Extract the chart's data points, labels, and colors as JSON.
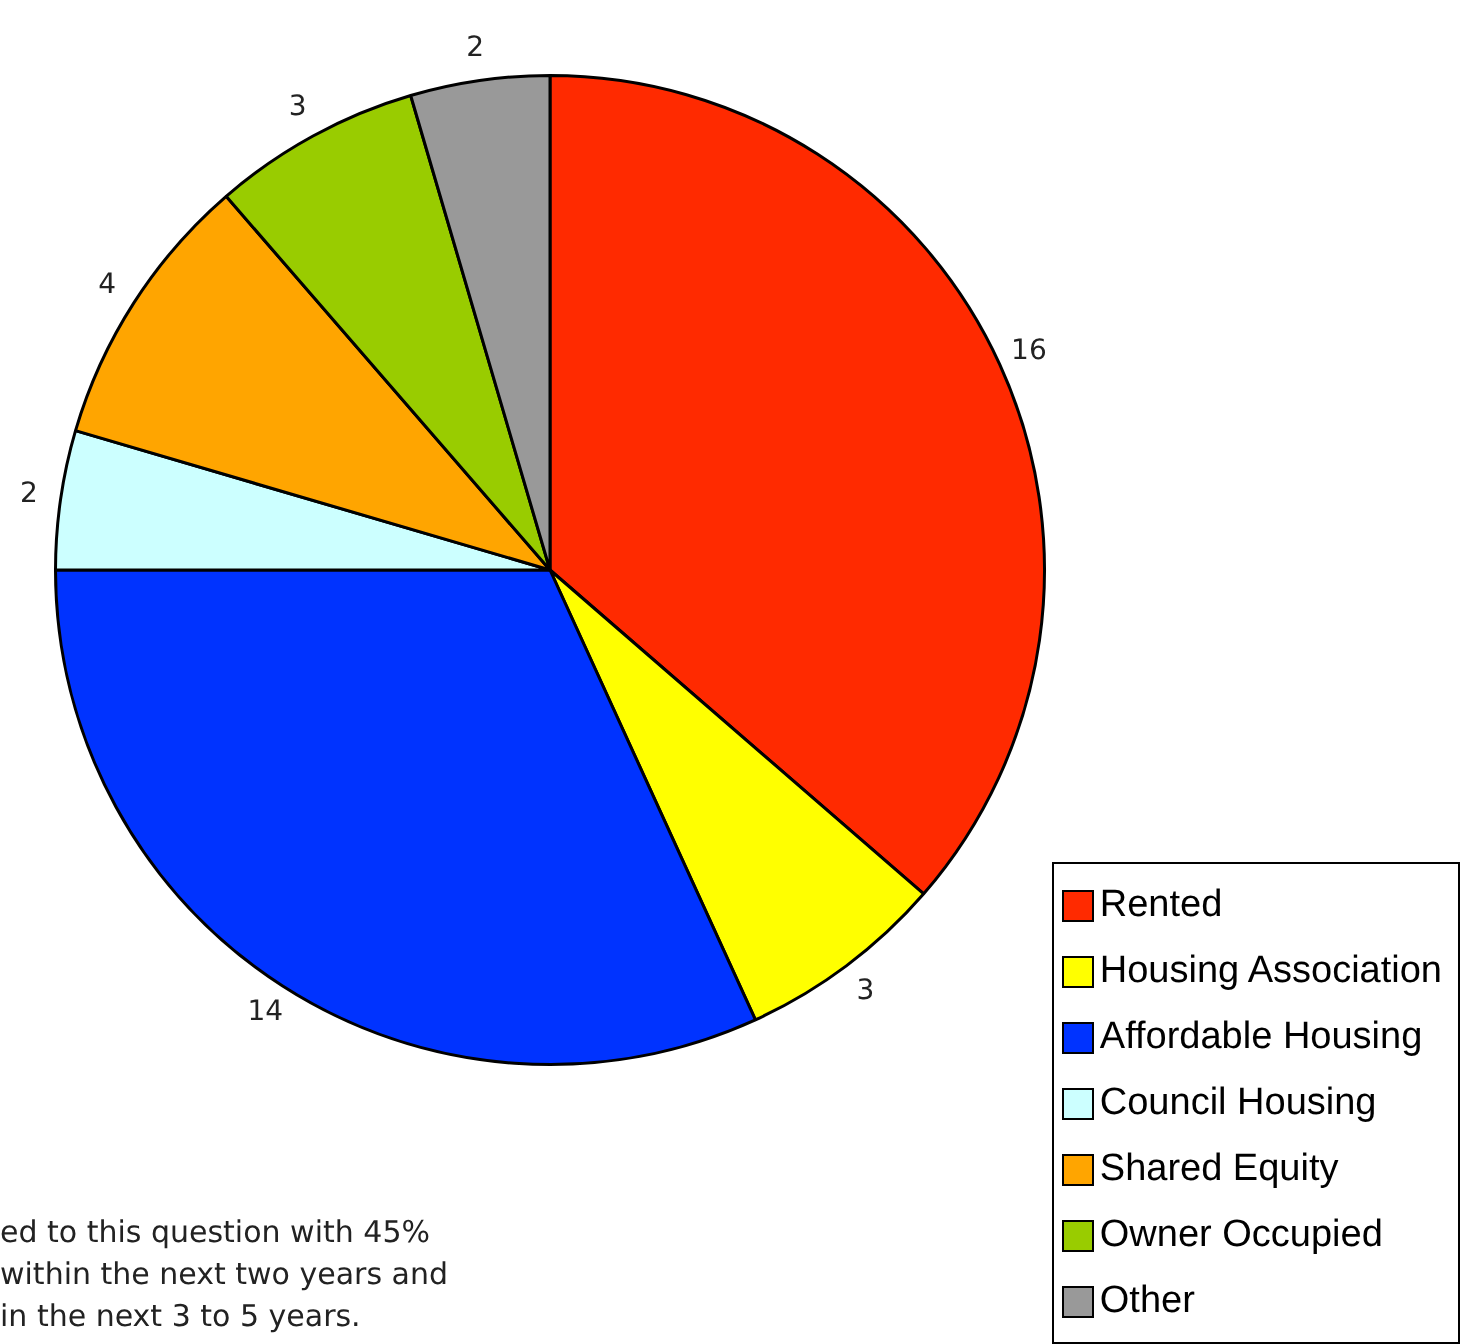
{
  "chart_data": {
    "type": "pie",
    "categories": [
      "Rented",
      "Housing Association",
      "Affordable Housing",
      "Council Housing",
      "Shared Equity",
      "Owner Occupied",
      "Other"
    ],
    "values": [
      16,
      3,
      14,
      2,
      4,
      3,
      2
    ],
    "colors": [
      "#ff2a00",
      "#ffff00",
      "#0033ff",
      "#ccffff",
      "#ffa500",
      "#99cc00",
      "#999999"
    ],
    "data_labels": true,
    "legend": "bottom right",
    "annotations": [
      "ed to this question with 45%",
      "within the next two years and",
      "in the next 3 to 5 years."
    ]
  }
}
